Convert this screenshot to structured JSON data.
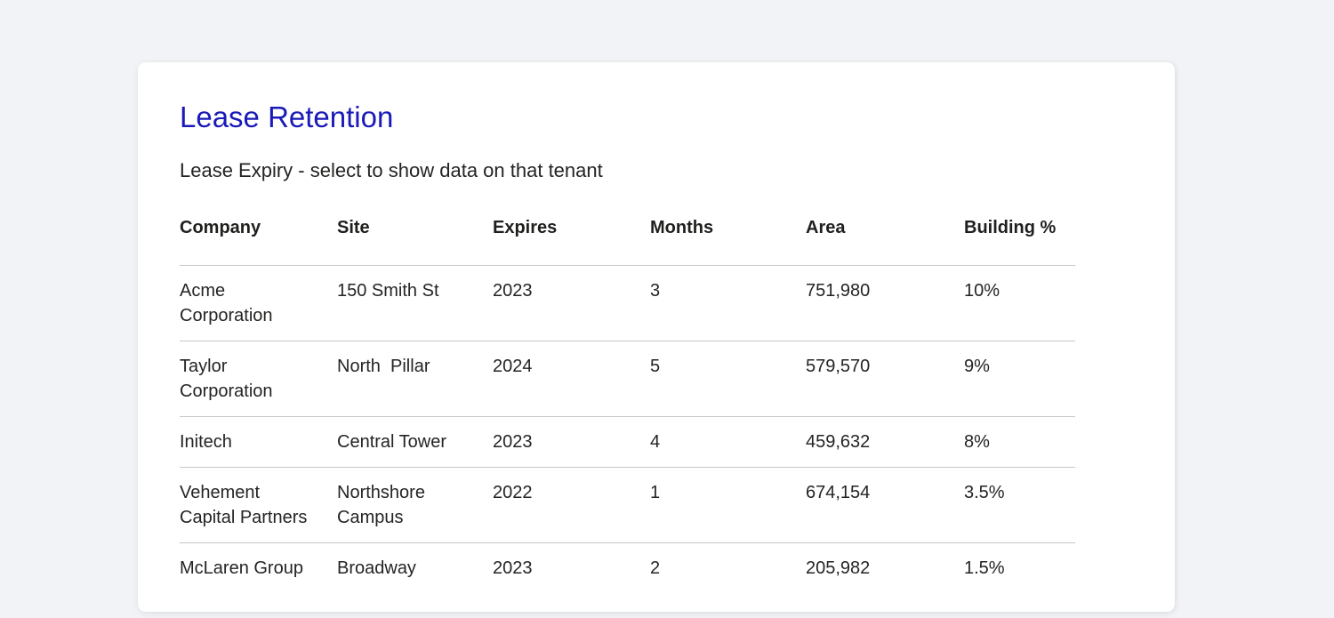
{
  "card": {
    "title": "Lease Retention",
    "subtitle": "Lease Expiry - select to show data on that tenant"
  },
  "table": {
    "columns": [
      "Company",
      "Site",
      "Expires",
      "Months",
      "Area",
      "Building %"
    ],
    "rows": [
      {
        "company": "Acme Corporation",
        "site": "150 Smith St",
        "expires": "2023",
        "months": "3",
        "area": "751,980",
        "building_pct": "10%"
      },
      {
        "company": "Taylor Corporation",
        "site": "North  Pillar",
        "expires": "2024",
        "months": "5",
        "area": "579,570",
        "building_pct": "9%"
      },
      {
        "company": "Initech",
        "site": "Central Tower",
        "expires": "2023",
        "months": "4",
        "area": "459,632",
        "building_pct": "8%"
      },
      {
        "company": "Vehement Capital Partners",
        "site": "Northshore Campus",
        "expires": "2022",
        "months": "1",
        "area": "674,154",
        "building_pct": "3.5%"
      },
      {
        "company": "McLaren Group",
        "site": "Broadway",
        "expires": "2023",
        "months": "2",
        "area": "205,982",
        "building_pct": "1.5%"
      }
    ]
  },
  "colors": {
    "canvas_background": "#f2f3f6",
    "card_background": "#ffffff",
    "title_text": "#1a1ab8",
    "body_text": "#252423",
    "header_text": "#201f1e",
    "divider": "#c8c8c8"
  }
}
